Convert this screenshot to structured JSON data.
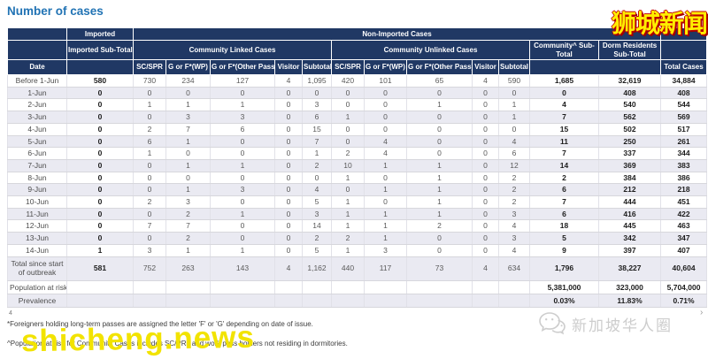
{
  "page": {
    "title": "Number of cases"
  },
  "table": {
    "header": {
      "imported": "Imported",
      "non_imported": "Non-Imported Cases",
      "imported_subtotal": "Imported Sub-Total",
      "community_linked": "Community Linked Cases",
      "community_unlinked": "Community Unlinked Cases",
      "community_subtotal": "Community^ Sub-Total",
      "dorm_subtotal": "Dorm Residents Sub-Total",
      "date": "Date",
      "sub_columns": [
        "SC/SPR",
        "G or F*(WP)",
        "G or F*(Other Pass)",
        "Visitor",
        "Subtotal"
      ],
      "total_cases": "Total Cases"
    },
    "rows": [
      {
        "date": "Before 1-Jun",
        "imported": "580",
        "linked": [
          "730",
          "234",
          "127",
          "4",
          "1,095"
        ],
        "unlinked": [
          "420",
          "101",
          "65",
          "4",
          "590"
        ],
        "community": "1,685",
        "dorm": "32,619",
        "total": "34,884"
      },
      {
        "date": "1-Jun",
        "imported": "0",
        "linked": [
          "0",
          "0",
          "0",
          "0",
          "0"
        ],
        "unlinked": [
          "0",
          "0",
          "0",
          "0",
          "0"
        ],
        "community": "0",
        "dorm": "408",
        "total": "408"
      },
      {
        "date": "2-Jun",
        "imported": "0",
        "linked": [
          "1",
          "1",
          "1",
          "0",
          "3"
        ],
        "unlinked": [
          "0",
          "0",
          "1",
          "0",
          "1"
        ],
        "community": "4",
        "dorm": "540",
        "total": "544"
      },
      {
        "date": "3-Jun",
        "imported": "0",
        "linked": [
          "0",
          "3",
          "3",
          "0",
          "6"
        ],
        "unlinked": [
          "1",
          "0",
          "0",
          "0",
          "1"
        ],
        "community": "7",
        "dorm": "562",
        "total": "569"
      },
      {
        "date": "4-Jun",
        "imported": "0",
        "linked": [
          "2",
          "7",
          "6",
          "0",
          "15"
        ],
        "unlinked": [
          "0",
          "0",
          "0",
          "0",
          "0"
        ],
        "community": "15",
        "dorm": "502",
        "total": "517"
      },
      {
        "date": "5-Jun",
        "imported": "0",
        "linked": [
          "6",
          "1",
          "0",
          "0",
          "7"
        ],
        "unlinked": [
          "0",
          "4",
          "0",
          "0",
          "4"
        ],
        "community": "11",
        "dorm": "250",
        "total": "261"
      },
      {
        "date": "6-Jun",
        "imported": "0",
        "linked": [
          "1",
          "0",
          "0",
          "0",
          "1"
        ],
        "unlinked": [
          "2",
          "4",
          "0",
          "0",
          "6"
        ],
        "community": "7",
        "dorm": "337",
        "total": "344"
      },
      {
        "date": "7-Jun",
        "imported": "0",
        "linked": [
          "0",
          "1",
          "1",
          "0",
          "2"
        ],
        "unlinked": [
          "10",
          "1",
          "1",
          "0",
          "12"
        ],
        "community": "14",
        "dorm": "369",
        "total": "383"
      },
      {
        "date": "8-Jun",
        "imported": "0",
        "linked": [
          "0",
          "0",
          "0",
          "0",
          "0"
        ],
        "unlinked": [
          "1",
          "0",
          "1",
          "0",
          "2"
        ],
        "community": "2",
        "dorm": "384",
        "total": "386"
      },
      {
        "date": "9-Jun",
        "imported": "0",
        "linked": [
          "0",
          "1",
          "3",
          "0",
          "4"
        ],
        "unlinked": [
          "0",
          "1",
          "1",
          "0",
          "2"
        ],
        "community": "6",
        "dorm": "212",
        "total": "218"
      },
      {
        "date": "10-Jun",
        "imported": "0",
        "linked": [
          "2",
          "3",
          "0",
          "0",
          "5"
        ],
        "unlinked": [
          "1",
          "0",
          "1",
          "0",
          "2"
        ],
        "community": "7",
        "dorm": "444",
        "total": "451"
      },
      {
        "date": "11-Jun",
        "imported": "0",
        "linked": [
          "0",
          "2",
          "1",
          "0",
          "3"
        ],
        "unlinked": [
          "1",
          "1",
          "1",
          "0",
          "3"
        ],
        "community": "6",
        "dorm": "416",
        "total": "422"
      },
      {
        "date": "12-Jun",
        "imported": "0",
        "linked": [
          "7",
          "7",
          "0",
          "0",
          "14"
        ],
        "unlinked": [
          "1",
          "1",
          "2",
          "0",
          "4"
        ],
        "community": "18",
        "dorm": "445",
        "total": "463"
      },
      {
        "date": "13-Jun",
        "imported": "0",
        "linked": [
          "0",
          "2",
          "0",
          "0",
          "2"
        ],
        "unlinked": [
          "2",
          "1",
          "0",
          "0",
          "3"
        ],
        "community": "5",
        "dorm": "342",
        "total": "347"
      },
      {
        "date": "14-Jun",
        "imported": "1",
        "linked": [
          "3",
          "1",
          "1",
          "0",
          "5"
        ],
        "unlinked": [
          "1",
          "3",
          "0",
          "0",
          "4"
        ],
        "community": "9",
        "dorm": "397",
        "total": "407"
      }
    ],
    "total_row": {
      "label": "Total since start of outbreak",
      "imported": "581",
      "linked": [
        "752",
        "263",
        "143",
        "4",
        "1,162"
      ],
      "unlinked": [
        "440",
        "117",
        "73",
        "4",
        "634"
      ],
      "community": "1,796",
      "dorm": "38,227",
      "total": "40,604"
    },
    "population_row": {
      "label": "Population at risk",
      "community": "5,381,000",
      "dorm": "323,000",
      "total": "5,704,000"
    },
    "prevalence_row": {
      "label": "Prevalence",
      "community": "0.03%",
      "dorm": "11.83%",
      "total": "0.71%"
    }
  },
  "footnotes": {
    "marker": "4",
    "f1": "*Foreigners holding long-term passes are assigned the letter 'F' or 'G' depending on date of issue.",
    "f2": "^Population at risk for Community Cases includes SC/PRs and work pass holders not residing in dormitories."
  },
  "watermarks": {
    "top_right": "狮城新闻",
    "bottom_left": "shicheng.news",
    "bottom_right": "新加坡华人圈",
    "corner_arrow": "›"
  },
  "colors": {
    "header_bg": "#203864",
    "title_blue": "#2173B4",
    "row_stripe": "#EAEAF2",
    "watermark_yellow": "#FFEE00",
    "watermark_red_outline": "#C00000",
    "logo_gray": "#CDCDCD"
  }
}
